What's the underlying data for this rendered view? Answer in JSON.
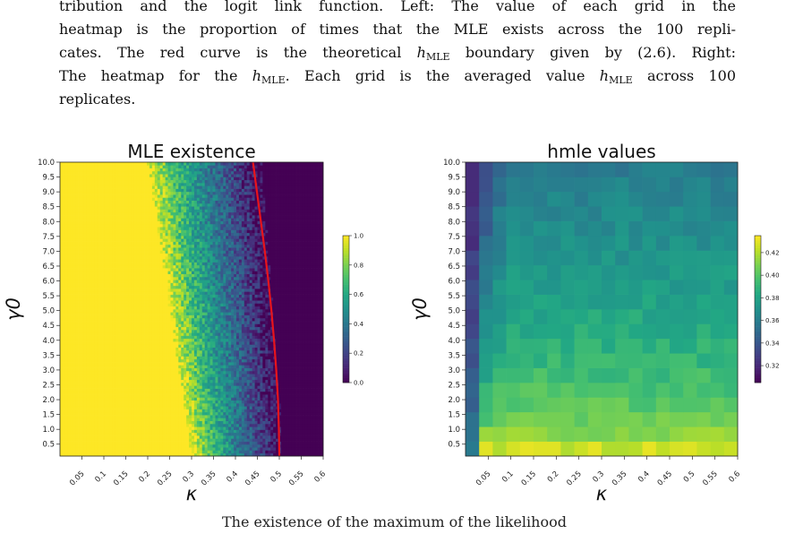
{
  "caption": {
    "line1": "tribution and the logit link function. Left: The value of each grid in the",
    "line2": "heatmap is the proportion of times that the MLE exists across the 100 repli-",
    "line3_pre": "cates. The red curve is the theoretical ",
    "line3_post": " boundary given by (2.6). Right:",
    "line4_pre": "The heatmap for the ",
    "line4_post": ". Each grid is the averaged value ",
    "line4_tail": " across 100",
    "line5": "replicates.",
    "math_h": "h",
    "math_sub": "MLE"
  },
  "footer_text": "The existence of the maximum of the likelihood",
  "chart_data": [
    {
      "type": "heatmap",
      "title": "MLE existence",
      "xlabel": "κ",
      "ylabel": "γ0",
      "xlim": [
        0,
        0.6
      ],
      "ylim": [
        0.1,
        10.0
      ],
      "xticks": [
        0.05,
        0.1,
        0.15,
        0.2,
        0.25,
        0.3,
        0.35,
        0.4,
        0.45,
        0.5,
        0.55,
        0.6
      ],
      "xtick_labels": [
        "0.05",
        "0.1",
        "0.15",
        "0.2",
        "0.25",
        "0.3",
        "0.35",
        "0.4",
        "0.45",
        "0.5",
        "0.55",
        "0.6"
      ],
      "yticks": [
        0.5,
        1.0,
        1.5,
        2.0,
        2.5,
        3.0,
        3.5,
        4.0,
        4.5,
        5.0,
        5.5,
        6.0,
        6.5,
        7.0,
        7.5,
        8.0,
        8.5,
        9.0,
        9.5,
        10.0
      ],
      "ytick_labels": [
        "0.5",
        "1.0",
        "1.5",
        "2.0",
        "2.5",
        "3.0",
        "3.5",
        "4.0",
        "4.5",
        "5.0",
        "5.5",
        "6.0",
        "6.5",
        "7.0",
        "7.5",
        "8.0",
        "8.5",
        "9.0",
        "9.5",
        "10.0"
      ],
      "colormap": "viridis",
      "value_range": [
        0.0,
        1.0
      ],
      "colorbar_ticks": [
        0.0,
        0.2,
        0.4,
        0.6,
        0.8,
        1.0
      ],
      "colorbar_tick_labels": [
        "0.0",
        "0.2",
        "0.4",
        "0.6",
        "0.8",
        "1.0"
      ],
      "transition": {
        "gamma": [
          0.1,
          10.0
        ],
        "kappa_start": [
          0.3,
          0.2
        ],
        "kappa_end": [
          0.51,
          0.46
        ]
      },
      "boundary_curve": {
        "color": "#e8141c",
        "kappa": [
          0.5,
          0.499,
          0.497,
          0.493,
          0.488,
          0.482,
          0.475,
          0.467,
          0.458,
          0.449,
          0.44
        ],
        "gamma": [
          0.1,
          1.0,
          2.0,
          3.0,
          4.0,
          5.0,
          6.0,
          7.0,
          8.0,
          9.0,
          10.0
        ]
      }
    },
    {
      "type": "heatmap",
      "title": "hmle values",
      "xlabel": "κ",
      "ylabel": "γ0",
      "xlim": [
        0,
        0.6
      ],
      "ylim": [
        0.1,
        10.0
      ],
      "xticks": [
        0.05,
        0.1,
        0.15,
        0.2,
        0.25,
        0.3,
        0.35,
        0.4,
        0.45,
        0.5,
        0.55,
        0.6
      ],
      "xtick_labels": [
        "0.05",
        "0.1",
        "0.15",
        "0.2",
        "0.25",
        "0.3",
        "0.35",
        "0.4",
        "0.45",
        "0.5",
        "0.55",
        "0.6"
      ],
      "yticks": [
        0.5,
        1.0,
        1.5,
        2.0,
        2.5,
        3.0,
        3.5,
        4.0,
        4.5,
        5.0,
        5.5,
        6.0,
        6.5,
        7.0,
        7.5,
        8.0,
        8.5,
        9.0,
        9.5,
        10.0
      ],
      "ytick_labels": [
        "0.5",
        "1.0",
        "1.5",
        "2.0",
        "2.5",
        "3.0",
        "3.5",
        "4.0",
        "4.5",
        "5.0",
        "5.5",
        "6.0",
        "6.5",
        "7.0",
        "7.5",
        "8.0",
        "8.5",
        "9.0",
        "9.5",
        "10.0"
      ],
      "colormap": "viridis",
      "value_range": [
        0.305,
        0.435
      ],
      "colorbar_ticks": [
        0.32,
        0.34,
        0.36,
        0.38,
        0.4,
        0.42
      ],
      "colorbar_tick_labels": [
        "0.32",
        "0.34",
        "0.36",
        "0.38",
        "0.40",
        "0.42"
      ],
      "grid_cols": 20,
      "grid_rows": 20,
      "trend": {
        "bottom_value": 0.425,
        "top_value": 0.36,
        "left_edge_value": 0.32
      }
    }
  ]
}
